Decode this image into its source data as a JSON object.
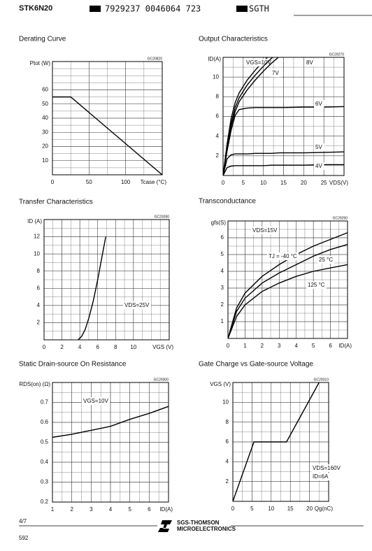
{
  "header": {
    "part": "STK6N20",
    "barcode": "7929237 0046064 723",
    "code": "SGTH"
  },
  "footer": {
    "page": "4/7",
    "number": "592",
    "brand": "SGS-THOMSON",
    "sub": "MICROELECTRONICS"
  },
  "chart_data": [
    {
      "type": "line",
      "title": "Derating Curve",
      "code": "GC20820",
      "ylabel": "Ptot (W)",
      "xlabel": "Tcase (°C)",
      "x": [
        0,
        25,
        150
      ],
      "values": [
        55,
        55,
        0
      ],
      "color": "#000000",
      "xlim": [
        0,
        150
      ],
      "ylim": [
        0,
        80
      ],
      "xticks": [
        0,
        50,
        100
      ],
      "yticks": [
        10,
        20,
        30,
        40,
        50,
        60
      ],
      "grid": true,
      "annotations": []
    },
    {
      "type": "line",
      "title": "Output Characteristics",
      "code": "GC29270",
      "ylabel": "ID(A)",
      "xlabel": "VDS(V)",
      "x": [
        0,
        1,
        2,
        3,
        4,
        6,
        8,
        10,
        12,
        14,
        15,
        20,
        25,
        30
      ],
      "series": [
        {
          "name": "VGS=10V",
          "values": [
            0,
            3.2,
            5.8,
            7.4,
            8.4,
            9.7,
            10.7,
            11.6,
            12.4,
            null,
            null,
            null,
            null,
            null
          ]
        },
        {
          "name": "8V",
          "values": [
            0,
            3,
            5.3,
            6.9,
            7.9,
            9.2,
            10.2,
            11.1,
            11.9,
            12.6,
            null,
            null,
            null,
            null
          ]
        },
        {
          "name": "7V",
          "values": [
            0,
            2.8,
            5,
            6.5,
            7.5,
            8.7,
            9.7,
            10.6,
            11.4,
            12.1,
            null,
            null,
            null,
            null
          ]
        },
        {
          "name": "6V",
          "values": [
            0,
            2.5,
            4.6,
            6.1,
            6.7,
            6.85,
            6.9,
            6.9,
            6.9,
            6.9,
            6.9,
            6.95,
            6.95,
            7
          ]
        },
        {
          "name": "5V",
          "values": [
            0,
            1.7,
            2.1,
            2.2,
            2.2,
            2.2,
            2.25,
            2.25,
            2.25,
            2.3,
            2.3,
            2.3,
            2.35,
            2.4
          ]
        },
        {
          "name": "4V",
          "values": [
            0,
            0.8,
            0.95,
            1,
            1,
            1,
            1,
            1,
            1.05,
            1.05,
            1.05,
            1.05,
            1.1,
            1.1
          ]
        }
      ],
      "color": "#000000",
      "xlim": [
        0,
        30
      ],
      "ylim": [
        0,
        12
      ],
      "xticks": [
        0,
        5,
        10,
        15,
        20,
        25
      ],
      "yticks": [
        2,
        4,
        6,
        8,
        10
      ],
      "grid": true,
      "annotations": []
    },
    {
      "type": "line",
      "title": "Transfer Characteristics",
      "code": "GC29280",
      "ylabel": "ID (A)",
      "xlabel": "VGS (V)",
      "x": [
        3.8,
        4.2,
        4.6,
        5,
        5.5,
        6,
        6.5,
        6.9
      ],
      "values": [
        0,
        0.4,
        1.2,
        2.5,
        4.5,
        7,
        9.8,
        12
      ],
      "color": "#000000",
      "xlim": [
        0,
        14
      ],
      "ylim": [
        0,
        14
      ],
      "xticks": [
        0,
        2,
        4,
        6,
        8,
        10
      ],
      "yticks": [
        2,
        4,
        6,
        8,
        10,
        12
      ],
      "grid": true,
      "annotations": [
        "VDS=25V"
      ]
    },
    {
      "type": "line",
      "title": "Transconductance",
      "code": "GC29290",
      "ylabel": "gfs(S)",
      "xlabel": "ID(A)",
      "x": [
        0,
        0.5,
        1,
        2,
        3,
        4,
        5,
        6,
        7
      ],
      "series": [
        {
          "name": "TJ = -40 °C",
          "values": [
            0,
            1.8,
            2.7,
            3.7,
            4.4,
            5,
            5.5,
            5.9,
            6.3
          ]
        },
        {
          "name": "25 °C",
          "values": [
            0,
            1.6,
            2.4,
            3.3,
            3.9,
            4.4,
            4.9,
            5.3,
            5.6
          ]
        },
        {
          "name": "125 °C",
          "values": [
            0,
            1.3,
            2,
            2.8,
            3.3,
            3.7,
            4,
            4.2,
            4.4
          ]
        }
      ],
      "color": "#000000",
      "xlim": [
        0,
        7
      ],
      "ylim": [
        0,
        7
      ],
      "xticks": [
        0,
        1,
        2,
        3,
        4,
        5,
        6
      ],
      "yticks": [
        1,
        2,
        3,
        4,
        5,
        6
      ],
      "grid": true,
      "annotations": [
        "VDS=15V"
      ]
    },
    {
      "type": "line",
      "title": "Static Drain-source On Resistance",
      "code": "GC29300",
      "ylabel": "RDS(on) (Ω)",
      "xlabel": "ID(A)",
      "x": [
        1,
        2,
        3,
        4,
        5,
        6,
        7
      ],
      "values": [
        0.525,
        0.54,
        0.56,
        0.58,
        0.615,
        0.645,
        0.68
      ],
      "color": "#000000",
      "xlim": [
        1,
        7
      ],
      "ylim": [
        0.2,
        0.8
      ],
      "xticks": [
        1,
        2,
        3,
        4,
        5,
        6
      ],
      "yticks": [
        0.2,
        0.3,
        0.4,
        0.5,
        0.6,
        0.7
      ],
      "grid": true,
      "annotations": [
        "VGS=10V"
      ]
    },
    {
      "type": "line",
      "title": "Gate Charge vs Gate-source Voltage",
      "code": "GC29310",
      "ylabel": "VGS (V)",
      "xlabel": "Qg(nC)",
      "x": [
        0,
        5.5,
        14,
        22.5
      ],
      "values": [
        0,
        6,
        6,
        12
      ],
      "color": "#000000",
      "xlim": [
        0,
        25
      ],
      "ylim": [
        0,
        12
      ],
      "xticks": [
        0,
        5,
        10,
        15,
        20
      ],
      "yticks": [
        2,
        4,
        6,
        8,
        10
      ],
      "grid": true,
      "annotations": [
        "VDS=160V",
        "ID=6A"
      ]
    }
  ]
}
